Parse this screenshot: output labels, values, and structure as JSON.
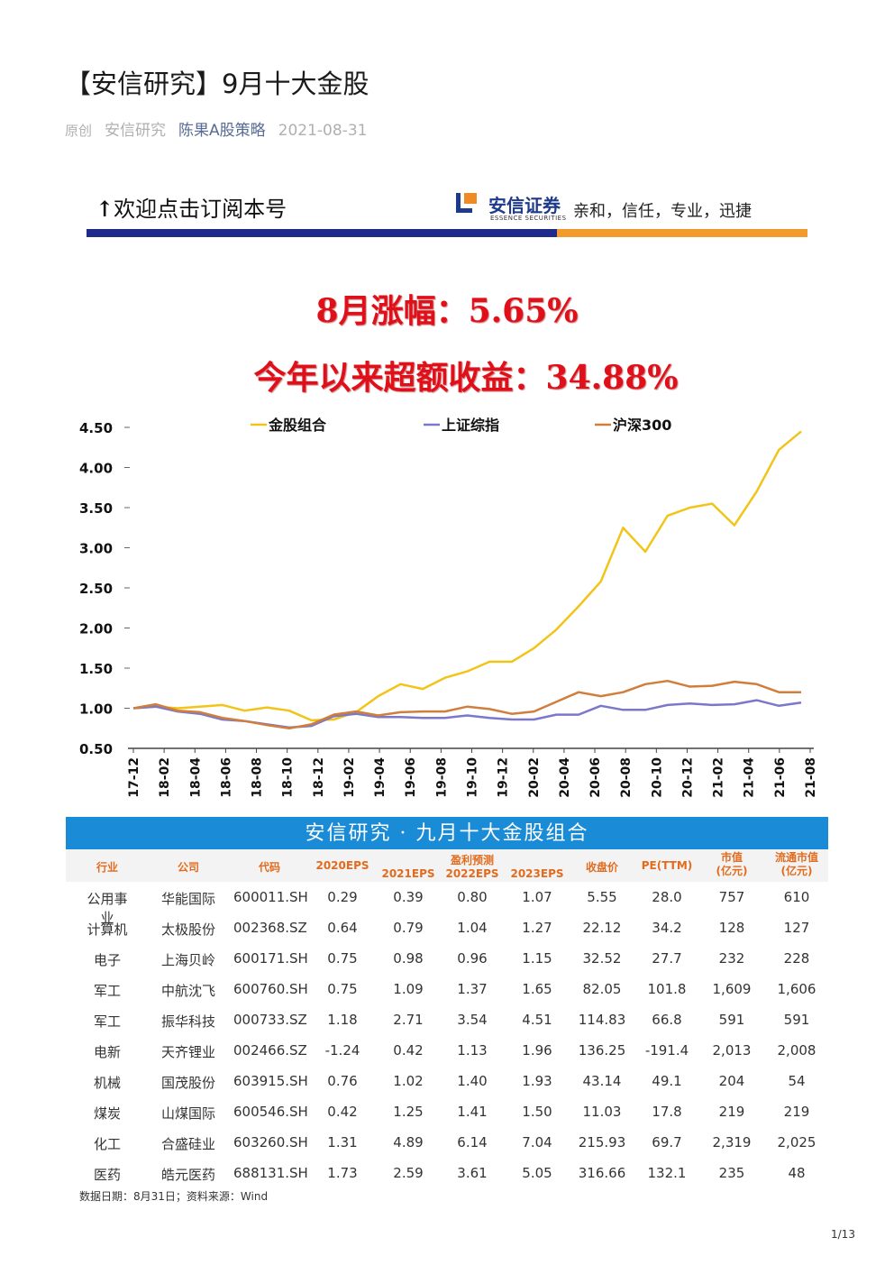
{
  "article": {
    "title": "【安信研究】9月十大金股",
    "original_tag": "原创",
    "source": "安信研究",
    "account": "陈果A股策略",
    "date": "2021-08-31"
  },
  "banner": {
    "subscribe_text": "欢迎点击订阅本号",
    "brand_cn": "安信证券",
    "brand_en": "ESSENCE SECURITIES",
    "slogan": "亲和，信任，专业，迅捷",
    "colors": {
      "navy": "#1e2b8c",
      "orange": "#f29b2b"
    }
  },
  "headlines": {
    "line1": "8月涨幅：5.65%",
    "line2": "今年以来超额收益：34.88%"
  },
  "chart_data": {
    "type": "line",
    "ylim": [
      0.5,
      4.5
    ],
    "yticks": [
      "4.50",
      "4.00",
      "3.50",
      "3.00",
      "2.50",
      "2.00",
      "1.50",
      "1.00",
      "0.50"
    ],
    "xticks": [
      "17-12",
      "18-02",
      "18-04",
      "18-06",
      "18-08",
      "18-10",
      "18-12",
      "19-02",
      "19-04",
      "19-06",
      "19-08",
      "19-10",
      "19-12",
      "20-02",
      "20-04",
      "20-06",
      "20-08",
      "20-10",
      "20-12",
      "21-02",
      "21-04",
      "21-06",
      "21-08"
    ],
    "legend_position": "top",
    "series": [
      {
        "name": "金股组合",
        "color": "#f2c418",
        "values": [
          1.0,
          1.02,
          1.0,
          1.02,
          1.04,
          0.97,
          1.01,
          0.97,
          0.85,
          0.86,
          0.95,
          1.15,
          1.3,
          1.24,
          1.38,
          1.46,
          1.58,
          1.58,
          1.75,
          1.98,
          2.27,
          2.58,
          3.25,
          2.95,
          3.4,
          3.5,
          3.55,
          3.28,
          3.7,
          4.22,
          4.45
        ]
      },
      {
        "name": "上证综指",
        "color": "#7b78cc",
        "values": [
          1.0,
          1.02,
          0.96,
          0.93,
          0.86,
          0.84,
          0.8,
          0.76,
          0.78,
          0.9,
          0.93,
          0.89,
          0.89,
          0.88,
          0.88,
          0.91,
          0.88,
          0.86,
          0.86,
          0.92,
          0.92,
          1.03,
          0.98,
          0.98,
          1.04,
          1.06,
          1.04,
          1.05,
          1.1,
          1.03,
          1.07
        ]
      },
      {
        "name": "沪深300",
        "color": "#d07e3c",
        "values": [
          1.0,
          1.05,
          0.97,
          0.95,
          0.88,
          0.84,
          0.79,
          0.75,
          0.8,
          0.92,
          0.96,
          0.91,
          0.95,
          0.96,
          0.96,
          1.02,
          0.99,
          0.93,
          0.96,
          1.08,
          1.2,
          1.15,
          1.2,
          1.3,
          1.34,
          1.27,
          1.28,
          1.33,
          1.3,
          1.2,
          1.2
        ]
      }
    ]
  },
  "table": {
    "title": "安信研究 · 九月十大金股组合",
    "headers": {
      "industry": "行业",
      "company": "公司",
      "code": "代码",
      "eps2020": "2020EPS",
      "forecast_group": "盈利预测",
      "eps2021": "2021EPS",
      "eps2022": "2022EPS",
      "eps2023": "2023EPS",
      "price": "收盘价",
      "pe": "PE(TTM)",
      "mktcap": "市值\n(亿元)",
      "float_cap": "流通市值\n(亿元)"
    },
    "rows": [
      [
        "公用事业",
        "华能国际",
        "600011.SH",
        "0.29",
        "0.39",
        "0.80",
        "1.07",
        "5.55",
        "28.0",
        "757",
        "610"
      ],
      [
        "计算机",
        "太极股份",
        "002368.SZ",
        "0.64",
        "0.79",
        "1.04",
        "1.27",
        "22.12",
        "34.2",
        "128",
        "127"
      ],
      [
        "电子",
        "上海贝岭",
        "600171.SH",
        "0.75",
        "0.98",
        "0.96",
        "1.15",
        "32.52",
        "27.7",
        "232",
        "228"
      ],
      [
        "军工",
        "中航沈飞",
        "600760.SH",
        "0.75",
        "1.09",
        "1.37",
        "1.65",
        "82.05",
        "101.8",
        "1,609",
        "1,606"
      ],
      [
        "军工",
        "振华科技",
        "000733.SZ",
        "1.18",
        "2.71",
        "3.54",
        "4.51",
        "114.83",
        "66.8",
        "591",
        "591"
      ],
      [
        "电新",
        "天齐锂业",
        "002466.SZ",
        "-1.24",
        "0.42",
        "1.13",
        "1.96",
        "136.25",
        "-191.4",
        "2,013",
        "2,008"
      ],
      [
        "机械",
        "国茂股份",
        "603915.SH",
        "0.76",
        "1.02",
        "1.40",
        "1.93",
        "43.14",
        "49.1",
        "204",
        "54"
      ],
      [
        "煤炭",
        "山煤国际",
        "600546.SH",
        "0.42",
        "1.25",
        "1.41",
        "1.50",
        "11.03",
        "17.8",
        "219",
        "219"
      ],
      [
        "化工",
        "合盛硅业",
        "603260.SH",
        "1.31",
        "4.89",
        "6.14",
        "7.04",
        "215.93",
        "69.7",
        "2,319",
        "2,025"
      ],
      [
        "医药",
        "皓元医药",
        "688131.SH",
        "1.73",
        "2.59",
        "3.61",
        "5.05",
        "316.66",
        "132.1",
        "235",
        "48"
      ]
    ],
    "note": "数据日期：8月31日；资料来源：Wind"
  },
  "page_number": "1/13"
}
